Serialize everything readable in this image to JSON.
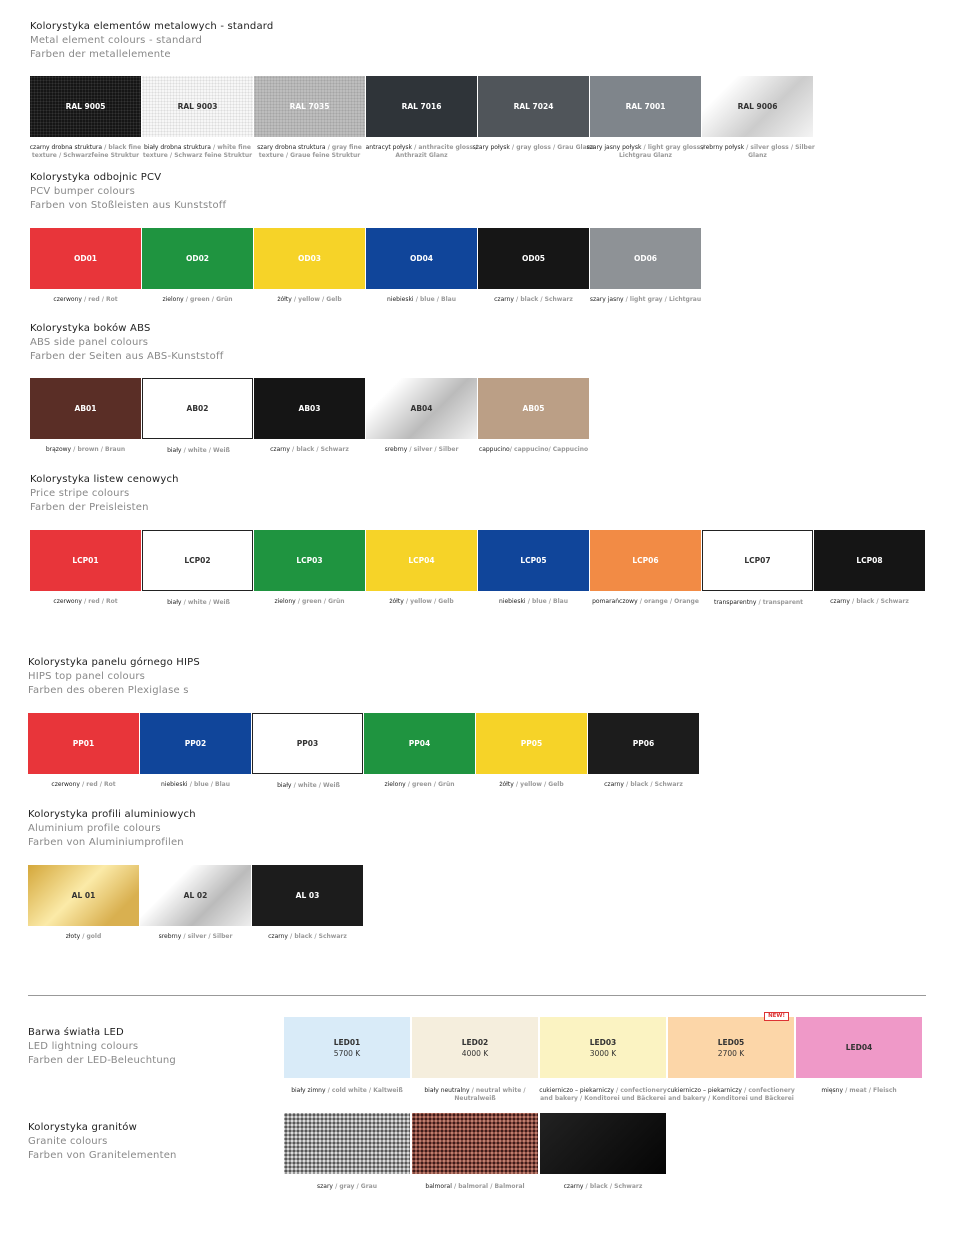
{
  "sections": [
    {
      "title": "Kolorystyka elementów metalowych - standard",
      "en": "Metal element colours - standard",
      "de": "Farben der metallelemente",
      "swatches": [
        {
          "code": "RAL 9005",
          "color": "#1c1c1c",
          "bg": "radial-gradient(#333 1px,#151515 1px) 0 0/3px 3px",
          "fg": "#fff",
          "pl": "czarny drobna struktura",
          "rest": " / black fine texture / Schwarzfeine Struktur"
        },
        {
          "code": "RAL 9003",
          "color": "#f2f2f2",
          "bg": "radial-gradient(#ddd 1px,#f7f7f7 1px) 0 0/3px 3px",
          "fg": "#333",
          "pl": "biały drobna struktura",
          "rest": " / white fine texture / Schwarz feine Struktur"
        },
        {
          "code": "RAL 7035",
          "color": "#b5b5b5",
          "bg": "radial-gradient(#a5a5a5 1px,#bdbdbd 1px) 0 0/3px 3px",
          "fg": "#fff",
          "pl": "szary drobna struktura",
          "rest": " / gray fine texture / Graue feine Struktur"
        },
        {
          "code": "RAL 7016",
          "color": "#2f3439",
          "fg": "#fff",
          "pl": "antracyt połysk",
          "rest": " / anthracite gloss / Anthrazit Glanz"
        },
        {
          "code": "RAL 7024",
          "color": "#50555a",
          "fg": "#fff",
          "pl": "szary połysk",
          "rest": " / gray gloss / Grau Glanz"
        },
        {
          "code": "RAL 7001",
          "color": "#7f858b",
          "fg": "#fff",
          "pl": "szary jasny połysk",
          "rest": " / light gray gloss / Lichtgrau Glanz"
        },
        {
          "code": "RAL 9006",
          "color": "#e0e0e0",
          "bg": "linear-gradient(135deg,#fff 20%,#ccc 60%,#f4f4f4)",
          "fg": "#333",
          "pl": "srebrny połysk",
          "rest": " / silver gloss / Silber Glanz"
        }
      ]
    },
    {
      "title": "Kolorystyka odbojnic PCV",
      "en": "PCV bumper colours",
      "de": "Farben von Stoßleisten aus Kunststoff",
      "swatches": [
        {
          "code": "OD01",
          "color": "#e8353a",
          "fg": "#fff",
          "pl": "czerwony",
          "rest": " / red / Rot"
        },
        {
          "code": "OD02",
          "color": "#1f9440",
          "fg": "#fff",
          "pl": "zielony",
          "rest": " / green / Grün"
        },
        {
          "code": "OD03",
          "color": "#f6d328",
          "fg": "#fff",
          "pl": "żółty",
          "rest": " / yellow / Gelb"
        },
        {
          "code": "OD04",
          "color": "#10459a",
          "fg": "#fff",
          "pl": "niebieski",
          "rest": " / blue / Blau"
        },
        {
          "code": "OD05",
          "color": "#161616",
          "fg": "#fff",
          "pl": "czarny",
          "rest": " / black / Schwarz"
        },
        {
          "code": "OD06",
          "color": "#8e9296",
          "fg": "#fff",
          "pl": "szary jasny",
          "rest": " / light gray / Lichtgrau"
        }
      ]
    },
    {
      "title": "Kolorystyka boków ABS",
      "en": "ABS side panel colours",
      "de": "Farben der Seiten aus ABS-Kunststoff",
      "swatches": [
        {
          "code": "AB01",
          "color": "#5a2e26",
          "fg": "#fff",
          "pl": "brązowy",
          "rest": " / brown / Braun"
        },
        {
          "code": "AB02",
          "color": "#ffffff",
          "border": "#222",
          "fg": "#333",
          "pl": "biały",
          "rest": " / white / Weiß"
        },
        {
          "code": "AB03",
          "color": "#151515",
          "fg": "#fff",
          "pl": "czarny",
          "rest": " / black / Schwarz"
        },
        {
          "code": "AB04",
          "color": "#e6e6e6",
          "bg": "linear-gradient(135deg,#fff 20%,#bbb 60%,#f2f2f2)",
          "fg": "#333",
          "pl": "srebrny",
          "rest": " / silver / Silber"
        },
        {
          "code": "AB05",
          "color": "#bb9f86",
          "fg": "#fff",
          "pl": "cappucino",
          "rest": "/ cappucino/ Cappucino"
        }
      ]
    },
    {
      "title": "Kolorystyka listew cenowych",
      "en": "Price stripe colours",
      "de": "Farben der Preisleisten",
      "swatches": [
        {
          "code": "LCP01",
          "color": "#e8353a",
          "fg": "#fff",
          "pl": "czerwony",
          "rest": " / red / Rot"
        },
        {
          "code": "LCP02",
          "color": "#ffffff",
          "border": "#222",
          "fg": "#333",
          "pl": "biały",
          "rest": " / white / Weiß"
        },
        {
          "code": "LCP03",
          "color": "#1f9440",
          "fg": "#fff",
          "pl": "zielony",
          "rest": " / green / Grün"
        },
        {
          "code": "LCP04",
          "color": "#f6d328",
          "fg": "#fff",
          "pl": "żółty",
          "rest": " / yellow / Gelb"
        },
        {
          "code": "LCP05",
          "color": "#10459a",
          "fg": "#fff",
          "pl": "niebieski",
          "rest": " / blue / Blau"
        },
        {
          "code": "LCP06",
          "color": "#f28b45",
          "fg": "#fff",
          "pl": "pomarańczowy",
          "rest": " / orange / Orange"
        },
        {
          "code": "LCP07",
          "color": "#ffffff",
          "border": "#222",
          "fg": "#333",
          "pl": "transparentny",
          "rest": " / transparent"
        },
        {
          "code": "LCP08",
          "color": "#151515",
          "fg": "#fff",
          "pl": "czarny",
          "rest": " / black / Schwarz"
        }
      ]
    },
    {
      "title": "Kolorystyka panelu górnego HIPS",
      "en": "HIPS top panel colours",
      "de": "Farben des oberen Plexiglase s",
      "swatches": [
        {
          "code": "PP01",
          "color": "#e8353a",
          "fg": "#fff",
          "pl": "czerwony",
          "rest": " / red / Rot"
        },
        {
          "code": "PP02",
          "color": "#10459a",
          "fg": "#fff",
          "pl": "niebieski",
          "rest": " / blue / Blau"
        },
        {
          "code": "PP03",
          "color": "#ffffff",
          "border": "#222",
          "fg": "#333",
          "pl": "biały",
          "rest": " / white / Weiß"
        },
        {
          "code": "PP04",
          "color": "#1f9440",
          "fg": "#fff",
          "pl": "zielony",
          "rest": " / green / Grün"
        },
        {
          "code": "PP05",
          "color": "#f6d328",
          "fg": "#fff",
          "pl": "żółty",
          "rest": " / yellow / Gelb"
        },
        {
          "code": "PP06",
          "color": "#1c1c1c",
          "fg": "#fff",
          "pl": "czarny",
          "rest": " / black / Schwarz"
        }
      ]
    },
    {
      "title": "Kolorystyka profili aluminiowych",
      "en": "Aluminium profile colours",
      "de": "Farben von Aluminiumprofilen",
      "swatches": [
        {
          "code": "AL 01",
          "color": "#e8c868",
          "bg": "linear-gradient(135deg,#d4a73a,#fbeaa8 45%,#d9b050 80%)",
          "fg": "#333",
          "pl": "złoty",
          "rest": " / gold"
        },
        {
          "code": "AL 02",
          "color": "#e6e6e6",
          "bg": "linear-gradient(135deg,#fff 30%,#bbb 65%,#eee)",
          "fg": "#333",
          "pl": "srebrny",
          "rest": " / silver / Silber"
        },
        {
          "code": "AL 03",
          "color": "#1c1c1c",
          "fg": "#fff",
          "pl": "czarny",
          "rest": " / black / Schwarz"
        }
      ]
    },
    {
      "title": "Barwa światła LED",
      "en": "LED lightning colours",
      "de": "Farben der LED-Beleuchtung",
      "led": true,
      "swatches": [
        {
          "code": "LED01",
          "sub": "5700 K",
          "color": "#d9ebf8",
          "fg": "#333",
          "pl": "biały zimny",
          "rest": " / cold white / Kaltweiß"
        },
        {
          "code": "LED02",
          "sub": "4000 K",
          "color": "#f5eedd",
          "fg": "#333",
          "pl": "biały neutralny",
          "rest": " / neutral white / Neutralweiß"
        },
        {
          "code": "LED03",
          "sub": "3000 K",
          "color": "#fbf3c2",
          "fg": "#333",
          "pl": "cukierniczo – piekarniczy",
          "rest": " / confectionery and bakery / Konditorei und Bäckerei"
        },
        {
          "code": "LED05",
          "sub": "2700 K",
          "badge": "NEW!",
          "color": "#fcd6a8",
          "fg": "#333",
          "pl": "cukierniczo – piekarniczy",
          "rest": " / confectionery and bakery / Konditorei und Bäckerei"
        },
        {
          "code": "LED04",
          "color": "#ef99c8",
          "fg": "#333",
          "pl": "mięsny",
          "rest": " / meat / Fleisch"
        }
      ]
    },
    {
      "title": "Kolorystyka granitów",
      "en": "Granite colours",
      "de": "Farben von Granitelementen",
      "led": true,
      "swatches": [
        {
          "code": "",
          "color": "#8a8a8a",
          "bg": "radial-gradient(#555 1px,transparent 1.5px) 0 0/4px 4px,radial-gradient(#ddd 1px,#999 1.5px) 2px 2px/4px 4px",
          "pl": "szary",
          "rest": " / gray / Grau"
        },
        {
          "code": "",
          "color": "#8a4a40",
          "bg": "radial-gradient(#3a1a18 1px,transparent 1.5px) 0 0/4px 4px,radial-gradient(#c08070 1px,#8a4a40 1.5px) 2px 2px/4px 4px",
          "pl": "balmoral",
          "rest": " / balmoral / Balmoral"
        },
        {
          "code": "",
          "color": "#0c0c0c",
          "bg": "linear-gradient(135deg,#222,#050505)",
          "pl": "czarny",
          "rest": " / black / Schwarz"
        }
      ]
    }
  ]
}
